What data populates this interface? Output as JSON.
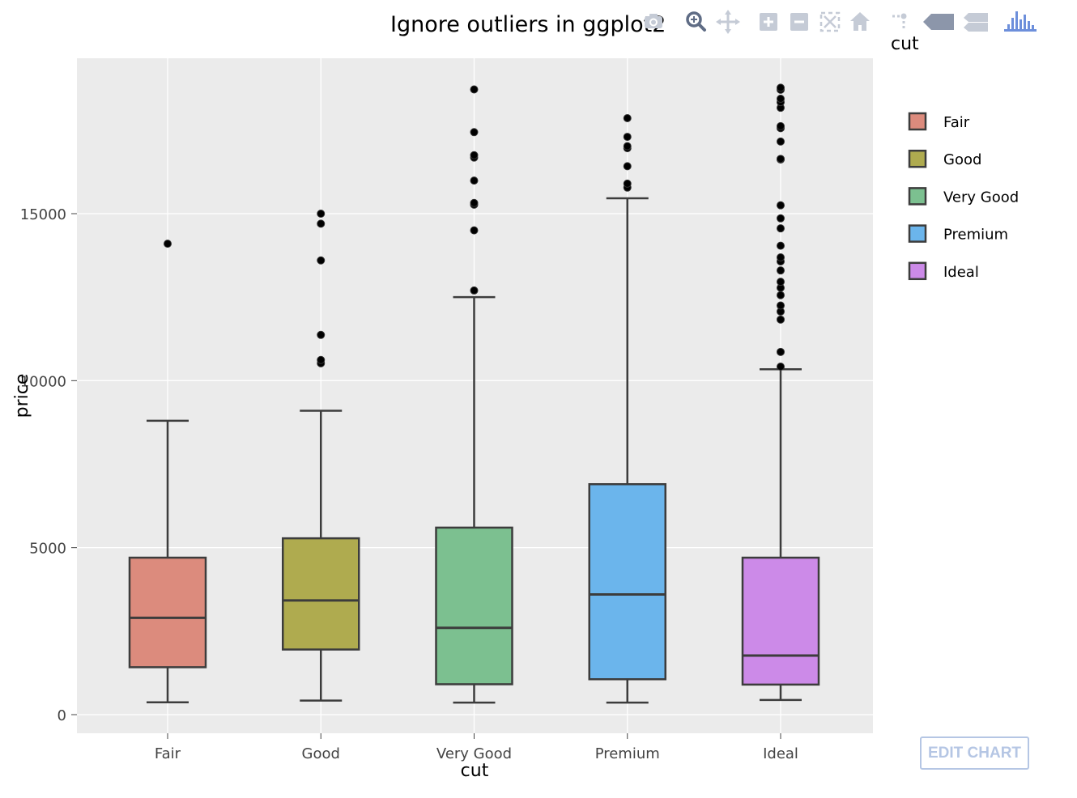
{
  "chart_data": {
    "type": "box",
    "title": "Ignore outliers in ggplot2",
    "xlabel": "cut",
    "ylabel": "price",
    "categories": [
      "Fair",
      "Good",
      "Very Good",
      "Premium",
      "Ideal"
    ],
    "ylim": [
      -550,
      19200
    ],
    "yticks": [
      0,
      5000,
      10000,
      15000
    ],
    "legend": {
      "title": "cut",
      "position": "right"
    },
    "grid": true,
    "series": [
      {
        "name": "Fair",
        "color": "#dc8b7d",
        "whisker_low": 370,
        "q1": 1420,
        "median": 2900,
        "q3": 4700,
        "whisker_high": 8800,
        "outliers": [
          14100
        ]
      },
      {
        "name": "Good",
        "color": "#afab4f",
        "whisker_low": 420,
        "q1": 1950,
        "median": 3420,
        "q3": 5280,
        "whisker_high": 9100,
        "outliers": [
          10520,
          10620,
          11370,
          13600,
          14700,
          15000
        ]
      },
      {
        "name": "Very Good",
        "color": "#7cc090",
        "whisker_low": 360,
        "q1": 910,
        "median": 2600,
        "q3": 5600,
        "whisker_high": 12500,
        "outliers": [
          12700,
          14500,
          15270,
          15320,
          15990,
          16680,
          16750,
          17440,
          18720
        ]
      },
      {
        "name": "Premium",
        "color": "#6bb5ec",
        "whisker_low": 360,
        "q1": 1060,
        "median": 3600,
        "q3": 6900,
        "whisker_high": 15460,
        "outliers": [
          15780,
          15900,
          16420,
          16960,
          17020,
          17300,
          17860
        ]
      },
      {
        "name": "Ideal",
        "color": "#cc8ae8",
        "whisker_low": 440,
        "q1": 900,
        "median": 1770,
        "q3": 4700,
        "whisker_high": 10340,
        "outliers": [
          10420,
          10860,
          11830,
          12070,
          12250,
          12560,
          12780,
          12960,
          13300,
          13570,
          13690,
          14040,
          14560,
          14860,
          15250,
          16620,
          16640,
          17160,
          17560,
          17620,
          18170,
          18340,
          18440,
          18710,
          18770
        ]
      }
    ]
  },
  "toolbar": {
    "edit_label": "EDIT CHART",
    "buttons": [
      "camera-icon",
      "zoom-icon",
      "pan-icon",
      "zoom-in-icon",
      "zoom-out-icon",
      "autoscale-icon",
      "reset-axes-icon",
      "spike-lines-icon",
      "hover-closest-icon",
      "hover-compare-icon",
      "plotly-logo-icon"
    ]
  }
}
